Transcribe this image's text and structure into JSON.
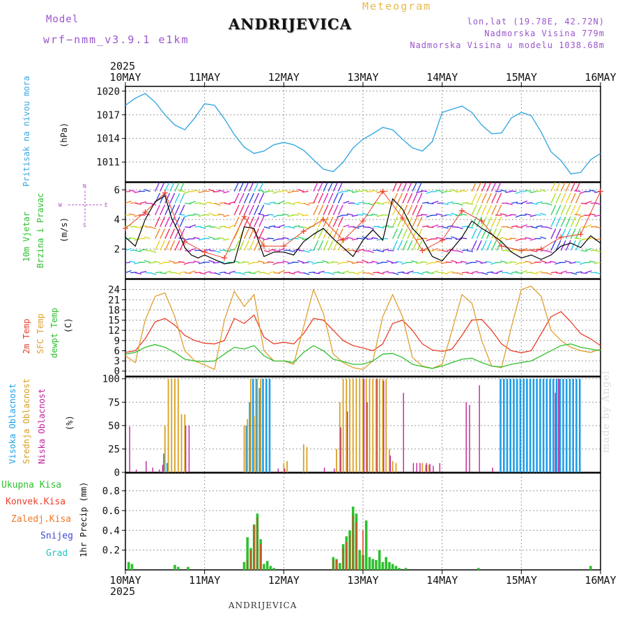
{
  "header": {
    "model_label": "Model",
    "model_value": "wrf−nmm_v3.9.1  e1km",
    "station_title": "ANDRIJEVICA",
    "meteogram_title": "Meteogram",
    "lonlat": "lon,lat (19.78E, 42.72N)",
    "elevation": "Nadmorska Visina 779m",
    "model_elevation": "Nadmorska Visina u modelu 1038.68m"
  },
  "footer": {
    "station": "ANDRIJEVICA",
    "watermark": "made by Angel"
  },
  "time_axis": {
    "year": "2025",
    "labels": [
      "10MAY",
      "11MAY",
      "12MAY",
      "13MAY",
      "14MAY",
      "15MAY",
      "16MAY"
    ]
  },
  "legend": {
    "pressure": "Pritisak na nivou mora",
    "pressure_unit": "(hPa)",
    "wind_1": "10m Vjetar",
    "wind_2": "Brzina i Pravac",
    "wind_unit": "(m/s)",
    "compass_n": "N",
    "compass_s": "S",
    "compass_w": "W",
    "compass_e": "E",
    "temp_2m": "2m Temp",
    "temp_sfc": "SFC Temp",
    "temp_dewpt": "dewpt Temp",
    "temp_unit": "(C)",
    "cloud_high": "Visoka Oblacnost",
    "cloud_mid": "Srednja Oblacnost",
    "cloud_low": "Niska  Oblacnost",
    "cloud_unit": "(%)",
    "precip_total": "Ukupna Kisa",
    "precip_conv": "Konvek.Kisa",
    "precip_frz": "Zaledj.Kisa",
    "precip_snow": "Snijeg",
    "precip_hail": "Grad",
    "precip_unit": "1hr Precip (mm)"
  },
  "colors": {
    "pressure": "#3aa8e0",
    "temp_2m": "#e8402a",
    "temp_sfc": "#e0a030",
    "temp_dewpt": "#2ec02e",
    "cloud_high": "#1e9ee8",
    "cloud_mid": "#d9a020",
    "cloud_low": "#c0209a",
    "precip_total": "#2ec02e",
    "precip_conv": "#e8402a",
    "precip_frz": "#f07828",
    "precip_snow": "#4444dd",
    "precip_hail": "#30c0c0",
    "wind_speed": "#000000",
    "wind_gust": "#e8402a"
  },
  "chart_data": [
    {
      "type": "line",
      "name": "pressure",
      "x_unit": "hours since 10MAY 00",
      "ylabel": "(hPa)",
      "ylim": [
        1008.5,
        1020.6
      ],
      "yticks": [
        1011,
        1014,
        1017,
        1020
      ],
      "x": [
        0,
        3,
        6,
        9,
        12,
        15,
        18,
        21,
        24,
        27,
        30,
        33,
        36,
        39,
        42,
        45,
        48,
        51,
        54,
        57,
        60,
        63,
        66,
        69,
        72,
        75,
        78,
        81,
        84,
        87,
        90,
        93,
        96,
        99,
        102,
        105,
        108,
        111,
        114,
        117,
        120,
        123,
        126,
        129,
        132,
        135,
        138,
        141,
        144
      ],
      "values": [
        1018.2,
        1019.1,
        1019.7,
        1018.6,
        1017.0,
        1015.7,
        1015.1,
        1016.6,
        1018.4,
        1018.2,
        1016.5,
        1014.5,
        1012.9,
        1012.1,
        1012.4,
        1013.2,
        1013.5,
        1013.2,
        1012.5,
        1011.3,
        1010.1,
        1009.8,
        1011.0,
        1012.8,
        1013.9,
        1014.6,
        1015.4,
        1015.1,
        1013.9,
        1012.8,
        1012.4,
        1013.6,
        1017.3,
        1017.7,
        1018.1,
        1017.3,
        1015.7,
        1014.6,
        1014.7,
        1016.6,
        1017.3,
        1016.9,
        1014.8,
        1012.3,
        1011.2,
        1009.5,
        1009.7,
        1011.3,
        1012.1
      ]
    },
    {
      "type": "line",
      "name": "wind",
      "x_unit": "hours since 10MAY 00",
      "ylabel": "(m/s)",
      "ylim": [
        0,
        6.5
      ],
      "yticks": [
        2,
        4,
        6
      ],
      "series": [
        {
          "name": "speed",
          "x": [
            0,
            3,
            6,
            9,
            12,
            14,
            16,
            18,
            20,
            22,
            24,
            27,
            30,
            33,
            36,
            39,
            42,
            45,
            48,
            51,
            54,
            57,
            60,
            63,
            66,
            69,
            72,
            75,
            78,
            81,
            84,
            87,
            90,
            93,
            96,
            99,
            102,
            105,
            108,
            111,
            114,
            117,
            120,
            123,
            126,
            129,
            132,
            135,
            138,
            141,
            144
          ],
          "values": [
            2.8,
            2.2,
            4.0,
            5.2,
            5.6,
            4.1,
            3.2,
            2.1,
            1.6,
            1.4,
            1.6,
            1.3,
            1.0,
            1.1,
            3.5,
            3.4,
            1.5,
            1.8,
            1.8,
            1.6,
            2.5,
            3.0,
            3.4,
            2.7,
            2.1,
            1.5,
            2.6,
            3.3,
            2.6,
            5.4,
            4.7,
            3.4,
            2.7,
            1.5,
            1.2,
            2.0,
            2.8,
            3.9,
            3.4,
            3.0,
            2.5,
            1.8,
            1.4,
            1.6,
            1.3,
            1.6,
            2.2,
            2.4,
            2.1,
            2.9,
            2.4
          ]
        },
        {
          "name": "gust",
          "x": [
            0,
            6,
            12,
            18,
            24,
            30,
            36,
            42,
            48,
            54,
            60,
            66,
            72,
            78,
            84,
            90,
            96,
            102,
            108,
            114,
            120,
            126,
            132,
            138,
            144
          ],
          "values": [
            3.4,
            4.5,
            5.8,
            2.5,
            1.8,
            1.4,
            4.2,
            2.2,
            2.2,
            3.2,
            4.0,
            2.6,
            3.9,
            5.9,
            4.1,
            1.9,
            2.6,
            4.6,
            3.9,
            2.2,
            1.9,
            2.0,
            2.8,
            3.0,
            5.9
          ]
        }
      ]
    },
    {
      "type": "line",
      "name": "temperature",
      "x_unit": "hours since 10MAY 00",
      "ylabel": "(C)",
      "ylim": [
        -1.5,
        27
      ],
      "yticks": [
        0,
        3,
        6,
        9,
        12,
        15,
        18,
        21,
        24
      ],
      "series": [
        {
          "name": "2m Temp",
          "x": [
            0,
            3,
            6,
            9,
            12,
            15,
            18,
            21,
            24,
            27,
            30,
            33,
            36,
            39,
            42,
            45,
            48,
            51,
            54,
            57,
            60,
            63,
            66,
            69,
            72,
            75,
            78,
            81,
            84,
            87,
            90,
            93,
            96,
            99,
            102,
            105,
            108,
            111,
            114,
            117,
            120,
            123,
            126,
            129,
            132,
            135,
            138,
            141,
            144
          ],
          "values": [
            5.5,
            6.0,
            9.5,
            14.5,
            15.5,
            13.5,
            10.5,
            9.0,
            8.2,
            8.0,
            9.0,
            15.5,
            14.0,
            16.5,
            10.0,
            8.0,
            8.5,
            8.0,
            11.0,
            15.5,
            15.0,
            12.0,
            9.0,
            7.5,
            6.8,
            6.0,
            8.0,
            14.0,
            15.0,
            12.0,
            8.0,
            6.2,
            5.8,
            6.5,
            10.5,
            15.0,
            15.2,
            12.0,
            8.0,
            6.0,
            5.4,
            6.0,
            11.0,
            16.0,
            17.5,
            14.5,
            11.0,
            9.5,
            7.5
          ]
        },
        {
          "name": "SFC Temp",
          "x": [
            0,
            3,
            6,
            9,
            12,
            15,
            18,
            21,
            24,
            27,
            30,
            33,
            36,
            39,
            42,
            45,
            48,
            51,
            54,
            57,
            60,
            63,
            66,
            69,
            72,
            75,
            78,
            81,
            84,
            87,
            90,
            93,
            96,
            99,
            102,
            105,
            108,
            111,
            114,
            117,
            120,
            123,
            126,
            129,
            132,
            135,
            138,
            141,
            144
          ],
          "values": [
            4.5,
            2.5,
            15.0,
            22.0,
            23.0,
            16.0,
            6.0,
            3.0,
            1.8,
            0.5,
            15.0,
            23.5,
            19.0,
            22.5,
            6.0,
            3.0,
            3.0,
            2.0,
            13.0,
            24.0,
            17.0,
            5.0,
            2.5,
            1.0,
            0.5,
            3.0,
            16.0,
            22.5,
            16.0,
            4.0,
            1.5,
            0.8,
            2.0,
            12.0,
            22.5,
            20.0,
            9.0,
            1.5,
            1.0,
            13.0,
            24.0,
            25.0,
            22.0,
            12.0,
            9.0,
            7.0,
            6.0,
            5.5,
            6.5
          ]
        },
        {
          "name": "dewpt Temp",
          "x": [
            0,
            3,
            6,
            9,
            12,
            15,
            18,
            21,
            24,
            27,
            30,
            33,
            36,
            39,
            42,
            45,
            48,
            51,
            54,
            57,
            60,
            63,
            66,
            69,
            72,
            75,
            78,
            81,
            84,
            87,
            90,
            93,
            96,
            99,
            102,
            105,
            108,
            111,
            114,
            117,
            120,
            123,
            126,
            129,
            132,
            135,
            138,
            141,
            144
          ],
          "values": [
            5.0,
            5.5,
            7.0,
            7.8,
            7.0,
            5.5,
            3.5,
            3.0,
            2.8,
            3.0,
            5.0,
            7.0,
            6.5,
            7.5,
            4.5,
            3.0,
            3.0,
            2.5,
            5.5,
            7.5,
            6.0,
            3.5,
            2.8,
            2.0,
            2.0,
            3.0,
            5.0,
            5.2,
            4.0,
            2.0,
            1.3,
            0.8,
            1.5,
            2.5,
            3.5,
            3.8,
            2.5,
            1.5,
            1.2,
            2.0,
            2.5,
            3.0,
            4.5,
            6.0,
            7.5,
            8.0,
            7.0,
            6.5,
            6.0
          ]
        }
      ]
    },
    {
      "type": "bar",
      "name": "cloud cover",
      "x_unit": "hours since 10MAY 00",
      "ylabel": "(%)",
      "ylim": [
        0,
        102
      ],
      "yticks": [
        0,
        25,
        50,
        75,
        100
      ],
      "series": [
        {
          "name": "Visoka Oblacnost",
          "x": [
            12,
            13,
            37,
            38,
            39,
            40,
            41,
            42,
            43,
            44,
            114,
            115,
            116,
            117,
            118,
            119,
            120,
            121,
            122,
            123,
            124,
            125,
            126,
            127,
            128,
            129,
            130,
            131,
            132,
            133,
            134,
            135,
            136,
            137,
            138
          ],
          "values": [
            20,
            10,
            50,
            75,
            100,
            100,
            90,
            100,
            100,
            100,
            100,
            100,
            100,
            100,
            100,
            100,
            100,
            100,
            100,
            100,
            100,
            100,
            100,
            100,
            100,
            100,
            100,
            100,
            100,
            100,
            100,
            100,
            100,
            100,
            100
          ]
        },
        {
          "name": "Srednja Oblacnost",
          "x": [
            12,
            13,
            14,
            15,
            16,
            17,
            18,
            36,
            37,
            38,
            39,
            40,
            41,
            48,
            49,
            54,
            55,
            64,
            65,
            66,
            67,
            68,
            69,
            70,
            71,
            72,
            73,
            74,
            75,
            76,
            77,
            78,
            79,
            80,
            81,
            82,
            90,
            91,
            92
          ],
          "values": [
            50,
            100,
            100,
            100,
            100,
            62,
            62,
            50,
            57,
            100,
            60,
            100,
            100,
            10,
            12,
            30,
            27,
            25,
            75,
            100,
            100,
            100,
            100,
            100,
            100,
            100,
            100,
            100,
            100,
            100,
            100,
            100,
            100,
            25,
            12,
            10,
            10,
            8,
            8
          ]
        },
        {
          "name": "Niska  Oblacnost",
          "x": [
            1,
            3,
            6,
            8,
            10,
            11,
            18,
            19,
            46,
            48,
            60,
            63,
            65,
            67,
            72,
            73,
            76,
            78,
            80,
            84,
            87,
            88,
            89,
            91,
            92,
            93,
            95,
            103,
            104,
            107,
            111,
            130,
            131
          ],
          "values": [
            49,
            3,
            12,
            5,
            3,
            8,
            50,
            50,
            4,
            4,
            5,
            4,
            48,
            65,
            100,
            75,
            100,
            98,
            18,
            85,
            10,
            10,
            10,
            10,
            9,
            7,
            10,
            75,
            72,
            93,
            5,
            85,
            100
          ]
        }
      ]
    },
    {
      "type": "bar",
      "name": "precipitation",
      "x_unit": "hours since 10MAY 00",
      "ylabel": "1hr Precip (mm)",
      "ylim": [
        0,
        0.98
      ],
      "yticks": [
        0.2,
        0.4,
        0.6,
        0.8
      ],
      "series": [
        {
          "name": "Ukupna Kisa",
          "x": [
            1,
            2,
            15,
            16,
            19,
            36,
            37,
            38,
            39,
            40,
            41,
            42,
            43,
            44,
            45,
            63,
            64,
            65,
            66,
            67,
            68,
            69,
            70,
            71,
            72,
            73,
            74,
            75,
            76,
            77,
            78,
            79,
            80,
            81,
            82,
            83,
            85,
            107,
            141
          ],
          "values": [
            0.08,
            0.06,
            0.05,
            0.03,
            0.03,
            0.08,
            0.33,
            0.22,
            0.46,
            0.57,
            0.31,
            0.06,
            0.09,
            0.04,
            0.02,
            0.13,
            0.11,
            0.07,
            0.26,
            0.34,
            0.4,
            0.64,
            0.57,
            0.2,
            0.15,
            0.5,
            0.13,
            0.11,
            0.1,
            0.2,
            0.08,
            0.13,
            0.08,
            0.06,
            0.04,
            0.02,
            0.02,
            0.02,
            0.04
          ]
        },
        {
          "name": "Konvek.Kisa",
          "x": [
            37,
            38,
            39,
            40,
            41,
            63,
            64,
            66,
            67,
            68,
            69,
            70,
            72
          ],
          "values": [
            0.1,
            0.2,
            0.45,
            0.53,
            0.26,
            0.1,
            0.1,
            0.22,
            0.28,
            0.35,
            0.55,
            0.48,
            0.4
          ]
        },
        {
          "name": "Zaledj.Kisa",
          "x": [],
          "values": []
        },
        {
          "name": "Snijeg",
          "x": [],
          "values": []
        },
        {
          "name": "Grad",
          "x": [],
          "values": []
        }
      ]
    }
  ]
}
